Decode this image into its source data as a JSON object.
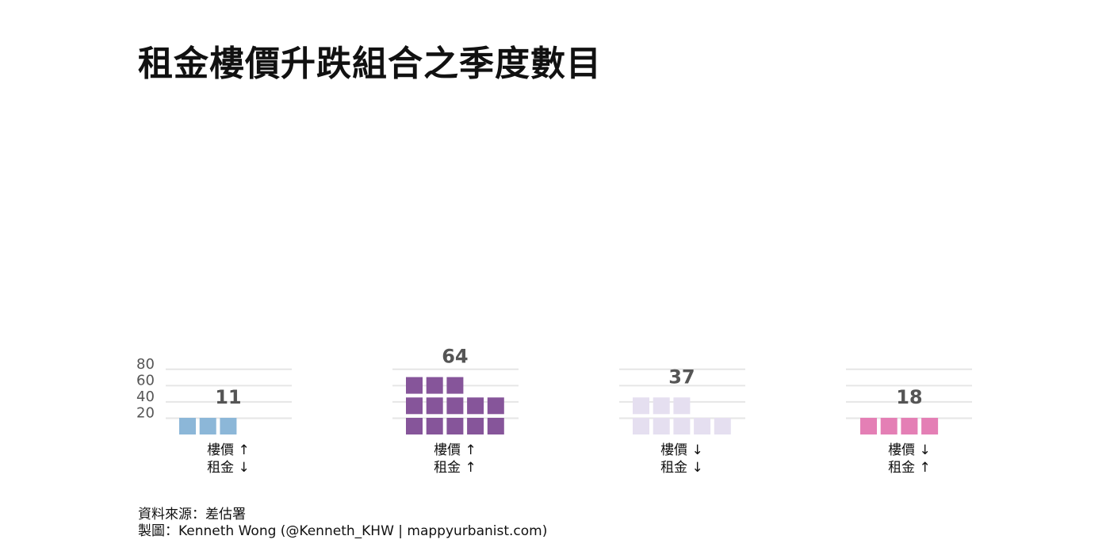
{
  "title": "租金樓價升跌組合之季度數目",
  "chart_data": {
    "type": "bar",
    "style": "waffle",
    "units_per_square": 5,
    "ylim": [
      0,
      80
    ],
    "yticks": [
      20,
      40,
      60,
      80
    ],
    "grid": true,
    "categories": [
      {
        "line1": "樓價 ↑",
        "line2": "租金 ↓"
      },
      {
        "line1": "樓價 ↑",
        "line2": "租金 ↑"
      },
      {
        "line1": "樓價 ↓",
        "line2": "租金 ↓"
      },
      {
        "line1": "樓價 ↓",
        "line2": "租金 ↑"
      }
    ],
    "values": [
      11,
      64,
      37,
      18
    ],
    "colors": [
      "#8cb7d8",
      "#86559a",
      "#e5dff0",
      "#e47fb5"
    ],
    "label_color": "#555555",
    "grid_color": "#e6e6e6",
    "tick_color": "#555555"
  },
  "footer": {
    "source": "資料來源：差估署",
    "credit": "製圖：Kenneth Wong (@Kenneth_KHW | mappyurbanist.com)"
  }
}
